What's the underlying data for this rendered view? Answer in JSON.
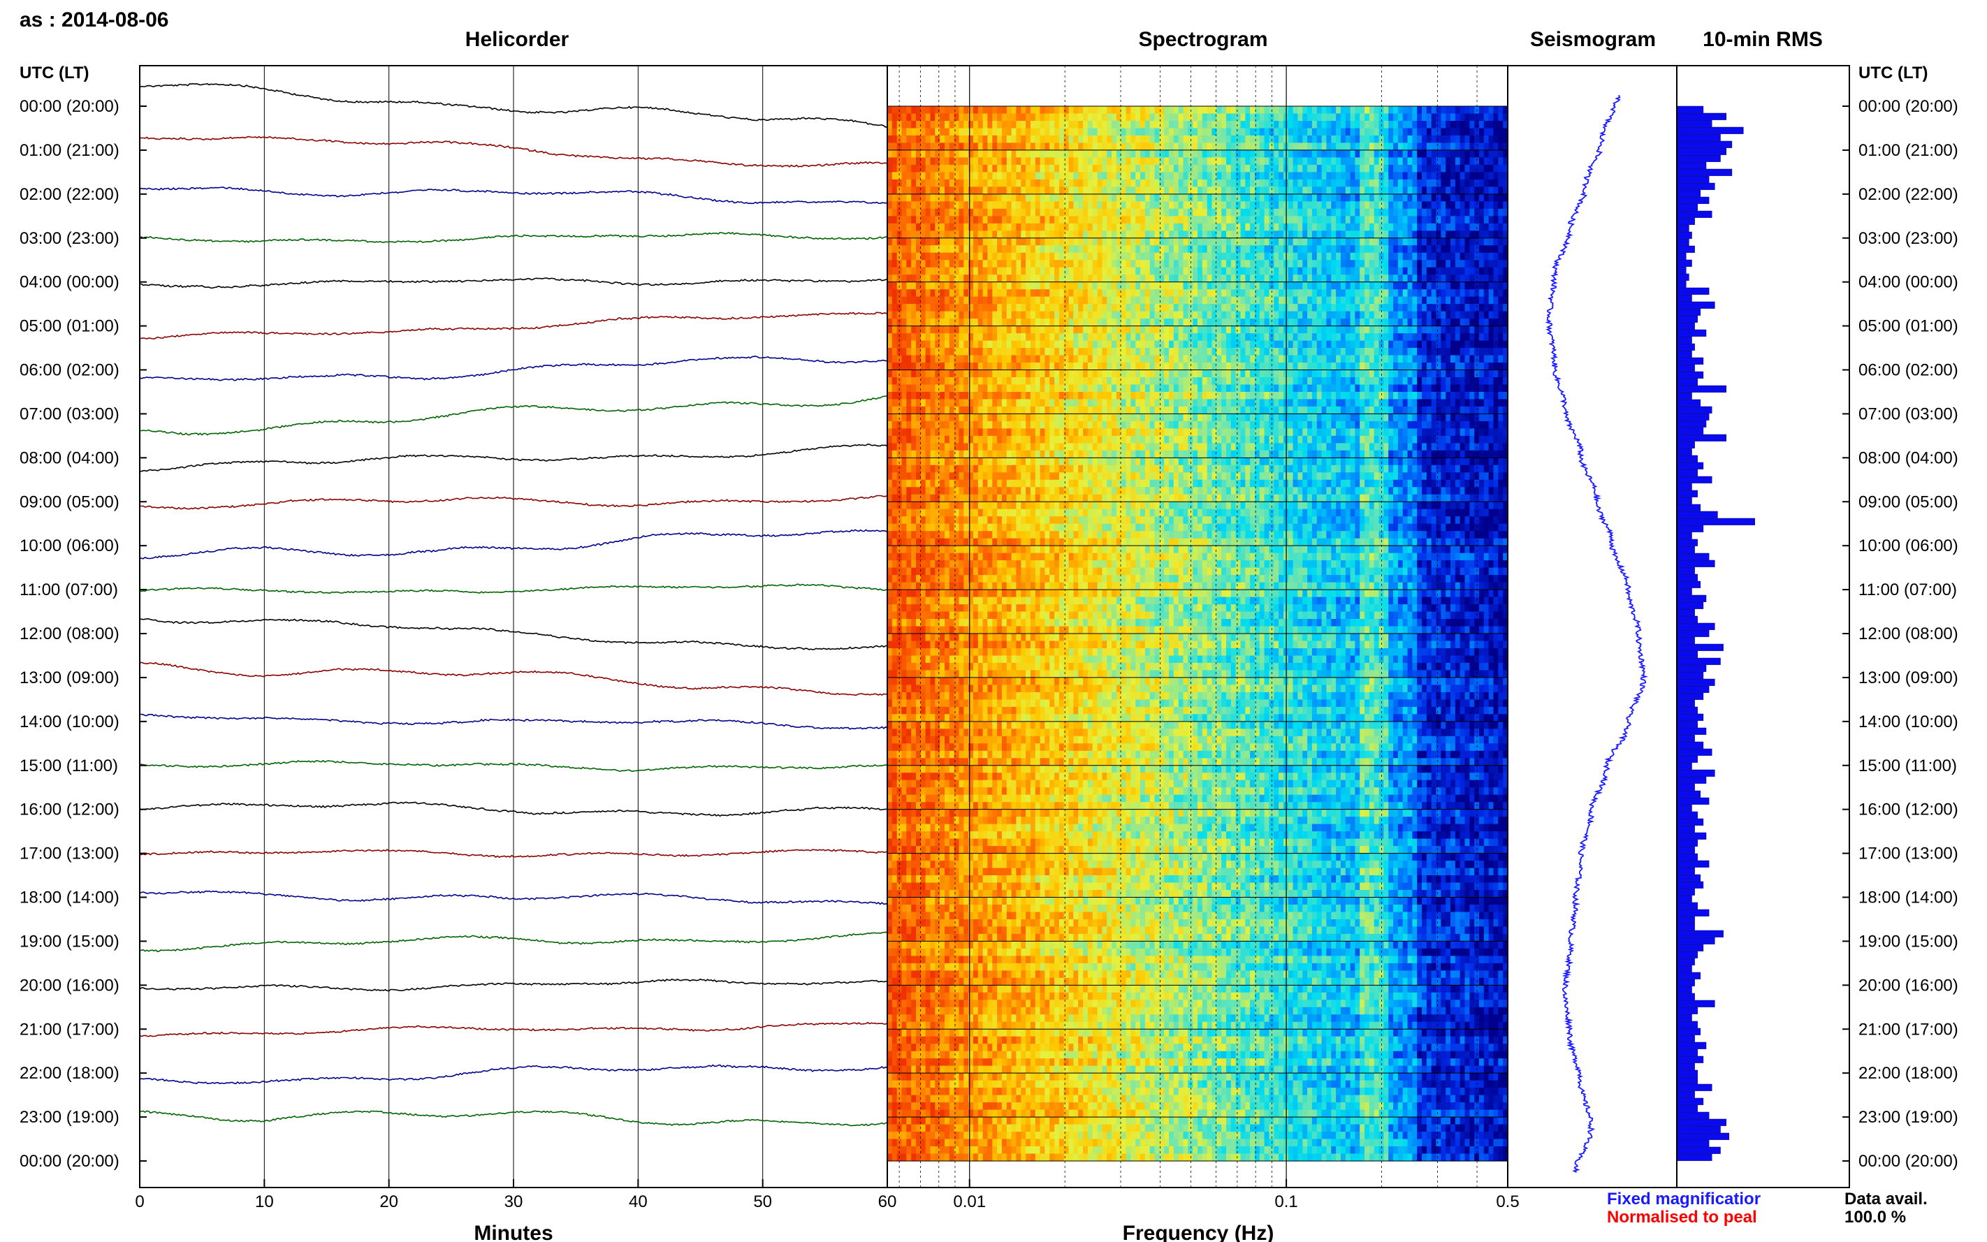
{
  "station_date": "as : 2014-08-06",
  "panels": {
    "helicorder": "Helicorder",
    "spectrogram": "Spectrogram",
    "seismogram": "Seismogram",
    "rms": "10-min RMS"
  },
  "time_axis_title_left": "UTC (LT)",
  "time_axis_title_right": "UTC (LT)",
  "time_labels": [
    "00:00 (20:00)",
    "01:00 (21:00)",
    "02:00 (22:00)",
    "03:00 (23:00)",
    "04:00 (00:00)",
    "05:00 (01:00)",
    "06:00 (02:00)",
    "07:00 (03:00)",
    "08:00 (04:00)",
    "09:00 (05:00)",
    "10:00 (06:00)",
    "11:00 (07:00)",
    "12:00 (08:00)",
    "13:00 (09:00)",
    "14:00 (10:00)",
    "15:00 (11:00)",
    "16:00 (12:00)",
    "17:00 (13:00)",
    "18:00 (14:00)",
    "19:00 (15:00)",
    "20:00 (16:00)",
    "21:00 (17:00)",
    "22:00 (18:00)",
    "23:00 (19:00)",
    "00:00 (20:00)"
  ],
  "helicorder_xlabel": "Minutes",
  "helicorder_ticks": [
    "0",
    "10",
    "20",
    "30",
    "40",
    "50",
    "60"
  ],
  "spectrogram_xlabel": "Frequency (Hz)",
  "spectrogram_ticks": [
    "0.01",
    "0.1",
    "0.5"
  ],
  "legend": {
    "fixed": "Fixed magnificatior",
    "normalised": "Normalised to peal",
    "fixed_color": "#1a1aff",
    "normalised_color": "#ff0000"
  },
  "data_avail_label": "Data avail.",
  "data_avail_value": "100.0 %",
  "trace_colors": [
    "#000000",
    "#8b0000",
    "#00008b",
    "#006400"
  ],
  "chart_data": {
    "type": "heatmap",
    "hours": 24,
    "helicorder_minutes_range": [
      0,
      60
    ],
    "spectrogram_frequency_range_hz": [
      0.0055,
      0.5
    ],
    "spectrogram_scale": "log",
    "rms_10min": [
      0.45,
      0.85,
      0.6,
      1.15,
      0.75,
      0.95,
      0.85,
      0.75,
      0.5,
      0.95,
      0.55,
      0.65,
      0.4,
      0.55,
      0.35,
      0.6,
      0.3,
      0.2,
      0.25,
      0.2,
      0.3,
      0.15,
      0.25,
      0.15,
      0.2,
      0.15,
      0.55,
      0.25,
      0.65,
      0.4,
      0.35,
      0.3,
      0.5,
      0.25,
      0.3,
      0.25,
      0.45,
      0.3,
      0.45,
      0.35,
      0.85,
      0.25,
      0.4,
      0.6,
      0.55,
      0.5,
      0.45,
      0.85,
      0.3,
      0.25,
      0.35,
      0.45,
      0.35,
      0.6,
      0.25,
      0.35,
      0.25,
      0.4,
      0.7,
      1.35,
      0.45,
      0.25,
      0.35,
      0.3,
      0.55,
      0.65,
      0.3,
      0.35,
      0.4,
      0.25,
      0.5,
      0.45,
      0.3,
      0.35,
      0.65,
      0.55,
      0.3,
      0.8,
      0.35,
      0.75,
      0.5,
      0.45,
      0.65,
      0.55,
      0.45,
      0.3,
      0.35,
      0.45,
      0.35,
      0.5,
      0.3,
      0.45,
      0.6,
      0.35,
      0.25,
      0.65,
      0.5,
      0.3,
      0.4,
      0.55,
      0.25,
      0.35,
      0.45,
      0.3,
      0.5,
      0.35,
      0.3,
      0.35,
      0.55,
      0.3,
      0.4,
      0.45,
      0.3,
      0.25,
      0.35,
      0.55,
      0.3,
      0.3,
      0.8,
      0.65,
      0.45,
      0.35,
      0.3,
      0.25,
      0.4,
      0.3,
      0.25,
      0.3,
      0.65,
      0.35,
      0.25,
      0.35,
      0.4,
      0.3,
      0.5,
      0.35,
      0.45,
      0.3,
      0.35,
      0.35,
      0.6,
      0.3,
      0.45,
      0.35,
      0.55,
      0.85,
      0.75,
      0.9,
      0.55,
      0.75,
      0.6
    ],
    "seismogram_offset": [
      0.7,
      0.55,
      0.4,
      0.25,
      0.1,
      0.05,
      0.1,
      0.2,
      0.35,
      0.5,
      0.65,
      0.8,
      0.9,
      0.95,
      0.8,
      0.6,
      0.45,
      0.35,
      0.3,
      0.25,
      0.2,
      0.25,
      0.35,
      0.45,
      0.3
    ],
    "seismogram_wobble": 0.1,
    "helicorder_trend_fraction": [
      -0.45,
      -0.4,
      -0.15,
      0.05,
      0.05,
      0.3,
      0.3,
      0.4,
      0.2,
      0.05,
      0.3,
      0.05,
      -0.4,
      -0.3,
      -0.1,
      -0.05,
      -0.1,
      0.0,
      -0.1,
      0.1,
      0.1,
      0.1,
      0.2,
      -0.1
    ],
    "helicorder_wobble_fraction": [
      0.2,
      0.15,
      0.15,
      0.1,
      0.1,
      0.1,
      0.15,
      0.2,
      0.15,
      0.15,
      0.2,
      0.1,
      0.15,
      0.2,
      0.1,
      0.1,
      0.15,
      0.1,
      0.15,
      0.15,
      0.1,
      0.1,
      0.15,
      0.2
    ]
  }
}
